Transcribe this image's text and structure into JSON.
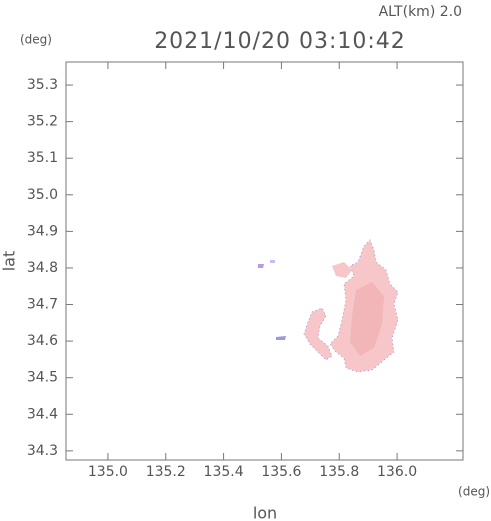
{
  "chart_data": {
    "type": "map",
    "title": "2021/10/20 03:10:42",
    "subtitle": "ALT(km) 2.0",
    "xlabel": "lon",
    "ylabel": "lat",
    "xunit": "(deg)",
    "yunit": "(deg)",
    "xlim": [
      134.855,
      136.228
    ],
    "ylim": [
      34.275,
      35.363
    ],
    "xticks": [
      {
        "value": 135.0,
        "label": "135.0"
      },
      135.2,
      135.4,
      135.6,
      135.8,
      {
        "value": 136.0,
        "label": "136.0"
      }
    ],
    "yticks": [
      34.3,
      34.4,
      34.5,
      34.6,
      34.7,
      34.8,
      34.9,
      {
        "value": 35.0,
        "label": "35.0"
      },
      35.1,
      35.2,
      35.3
    ],
    "color": "#f7c6c8"
  }
}
